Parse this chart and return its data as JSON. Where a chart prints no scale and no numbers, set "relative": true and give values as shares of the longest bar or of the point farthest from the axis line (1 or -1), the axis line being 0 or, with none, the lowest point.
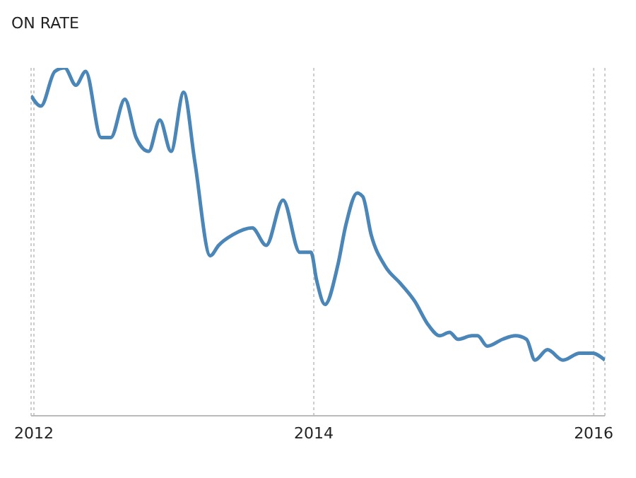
{
  "chart_data": {
    "type": "line",
    "title": "ON RATE",
    "relative": true,
    "grid": "x",
    "line_style": "solid",
    "xlim": [
      2011.98,
      2016.08
    ],
    "xticks": [
      2012,
      2014,
      2016
    ],
    "x": [
      2011.98,
      2012.05,
      2012.15,
      2012.22,
      2012.3,
      2012.37,
      2012.48,
      2012.55,
      2012.65,
      2012.73,
      2012.82,
      2012.9,
      2012.98,
      2013.07,
      2013.15,
      2013.26,
      2013.32,
      2013.42,
      2013.56,
      2013.66,
      2013.78,
      2013.9,
      2013.98,
      2014.02,
      2014.08,
      2014.17,
      2014.23,
      2014.31,
      2014.35,
      2014.41,
      2014.51,
      2014.62,
      2014.72,
      2014.82,
      2014.9,
      2014.97,
      2015.03,
      2015.13,
      2015.17,
      2015.24,
      2015.35,
      2015.44,
      2015.52,
      2015.58,
      2015.67,
      2015.78,
      2015.9,
      2015.99,
      2016.08
    ],
    "series": [
      {
        "color": "#4a86b8",
        "values": [
          0.92,
          0.89,
          0.99,
          1,
          0.95,
          0.99,
          0.8,
          0.8,
          0.91,
          0.8,
          0.76,
          0.85,
          0.76,
          0.93,
          0.73,
          0.46,
          0.49,
          0.52,
          0.54,
          0.49,
          0.62,
          0.47,
          0.47,
          0.39,
          0.32,
          0.43,
          0.55,
          0.64,
          0.63,
          0.52,
          0.43,
          0.38,
          0.33,
          0.26,
          0.23,
          0.24,
          0.22,
          0.23,
          0.23,
          0.2,
          0.22,
          0.23,
          0.22,
          0.16,
          0.19,
          0.16,
          0.18,
          0.18,
          0.16
        ]
      }
    ]
  }
}
